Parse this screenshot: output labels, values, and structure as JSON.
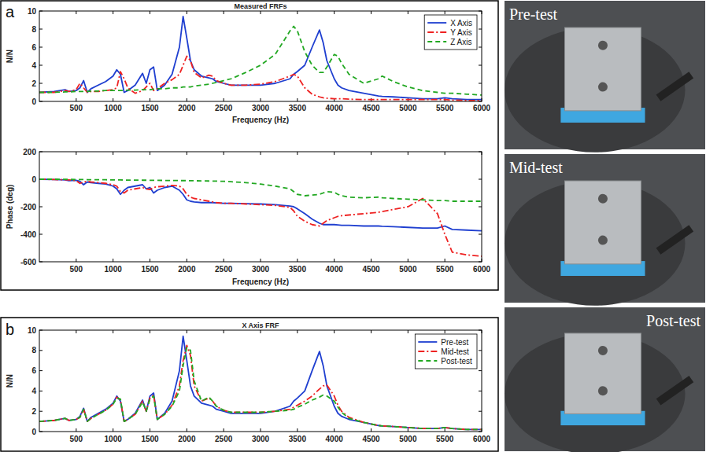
{
  "chart_data": [
    {
      "type": "line",
      "panel": "a",
      "title": "Measured FRFs",
      "x_label": "Frequency (Hz)",
      "y_label": "N/N",
      "x": [
        0,
        200,
        350,
        400,
        500,
        550,
        600,
        650,
        700,
        800,
        900,
        1000,
        1050,
        1100,
        1150,
        1200,
        1300,
        1400,
        1450,
        1500,
        1550,
        1600,
        1700,
        1800,
        1900,
        1950,
        2000,
        2050,
        2100,
        2200,
        2300,
        2350,
        2400,
        2500,
        2600,
        2800,
        3000,
        3200,
        3400,
        3450,
        3500,
        3600,
        3700,
        3800,
        3850,
        3900,
        4000,
        4050,
        4100,
        4200,
        4400,
        4600,
        4650,
        4800,
        5000,
        5200,
        5400,
        5500,
        5600,
        5800,
        6000
      ],
      "xlim": [
        0,
        6000
      ],
      "xticks": [
        500,
        1000,
        1500,
        2000,
        2500,
        3000,
        3500,
        4000,
        4500,
        5000,
        5500,
        6000
      ],
      "ylim": [
        0,
        10
      ],
      "yticks": [
        0,
        2,
        4,
        6,
        8,
        10
      ],
      "legend": "upper right",
      "series": [
        {
          "name": "X Axis",
          "color": "#1f3fd0",
          "line_style": "solid",
          "values": [
            1.0,
            1.1,
            1.3,
            1.1,
            1.2,
            1.5,
            2.3,
            1.0,
            1.4,
            1.8,
            2.2,
            2.8,
            3.5,
            3.0,
            1.0,
            1.2,
            1.8,
            3.1,
            2.0,
            3.5,
            3.8,
            1.2,
            1.8,
            3.0,
            6.0,
            9.4,
            7.0,
            4.5,
            3.5,
            2.8,
            2.6,
            2.5,
            2.2,
            2.0,
            1.8,
            1.8,
            1.8,
            2.0,
            2.5,
            3.0,
            3.3,
            4.0,
            6.0,
            7.9,
            6.5,
            4.5,
            2.5,
            1.8,
            1.5,
            1.2,
            0.9,
            0.6,
            0.55,
            0.5,
            0.4,
            0.3,
            0.3,
            0.4,
            0.3,
            0.2,
            0.2
          ]
        },
        {
          "name": "Y Axis",
          "color": "#ee2222",
          "line_style": "dash-dot",
          "values": [
            1.0,
            1.0,
            1.2,
            1.1,
            1.3,
            2.0,
            1.5,
            1.0,
            1.1,
            1.1,
            1.2,
            1.3,
            1.5,
            3.3,
            2.5,
            1.5,
            0.9,
            1.2,
            1.6,
            2.0,
            1.2,
            1.4,
            2.0,
            2.4,
            3.0,
            4.0,
            5.0,
            4.5,
            3.2,
            2.6,
            2.9,
            2.8,
            2.3,
            2.0,
            1.8,
            1.8,
            1.9,
            2.2,
            2.8,
            3.0,
            2.8,
            1.5,
            0.8,
            0.5,
            0.4,
            0.35,
            0.3,
            0.3,
            0.3,
            0.25,
            0.2,
            0.2,
            0.2,
            0.2,
            0.2,
            0.2,
            0.2,
            0.2,
            0.15,
            0.1,
            0.1
          ]
        },
        {
          "name": "Z Axis",
          "color": "#22a822",
          "line_style": "dashed",
          "values": [
            1.0,
            1.0,
            1.05,
            1.05,
            1.1,
            1.1,
            1.1,
            1.1,
            1.15,
            1.15,
            1.2,
            1.2,
            1.2,
            1.2,
            1.2,
            1.25,
            1.25,
            1.3,
            1.3,
            1.3,
            1.35,
            1.4,
            1.4,
            1.5,
            1.5,
            1.6,
            1.6,
            1.6,
            1.7,
            1.8,
            1.9,
            2.0,
            2.1,
            2.3,
            2.5,
            3.2,
            4.0,
            5.2,
            7.8,
            8.3,
            7.8,
            5.5,
            4.0,
            3.2,
            3.2,
            3.8,
            5.2,
            5.0,
            4.2,
            3.0,
            2.0,
            2.5,
            2.8,
            2.2,
            1.6,
            1.2,
            1.0,
            0.9,
            0.9,
            0.8,
            0.7
          ]
        }
      ]
    },
    {
      "type": "line",
      "x_label": "Frequency (Hz)",
      "y_label": "Phase (deg)",
      "x": [
        0,
        200,
        350,
        400,
        500,
        550,
        600,
        650,
        700,
        800,
        900,
        1000,
        1050,
        1100,
        1150,
        1200,
        1300,
        1400,
        1450,
        1500,
        1550,
        1600,
        1700,
        1800,
        1900,
        1950,
        2000,
        2050,
        2100,
        2200,
        2300,
        2350,
        2400,
        2500,
        2600,
        2800,
        3000,
        3200,
        3400,
        3450,
        3500,
        3600,
        3700,
        3800,
        3850,
        3900,
        4000,
        4050,
        4100,
        4200,
        4400,
        4600,
        4650,
        4800,
        5000,
        5200,
        5400,
        5500,
        5600,
        5800,
        6000
      ],
      "xlim": [
        0,
        6000
      ],
      "xticks": [
        500,
        1000,
        1500,
        2000,
        2500,
        3000,
        3500,
        4000,
        4500,
        5000,
        5500,
        6000
      ],
      "ylim": [
        -600,
        200
      ],
      "yticks": [
        -600,
        -400,
        -200,
        0,
        200
      ],
      "series": [
        {
          "color": "#1f3fd0",
          "line_style": "solid",
          "values": [
            0,
            -2,
            -5,
            -10,
            -8,
            -15,
            -40,
            -20,
            -25,
            -30,
            -35,
            -50,
            -70,
            -110,
            -80,
            -60,
            -50,
            -40,
            -70,
            -60,
            -100,
            -80,
            -60,
            -50,
            -80,
            -110,
            -150,
            -160,
            -165,
            -170,
            -170,
            -170,
            -172,
            -175,
            -175,
            -178,
            -180,
            -185,
            -195,
            -200,
            -215,
            -250,
            -290,
            -320,
            -330,
            -330,
            -330,
            -332,
            -335,
            -335,
            -340,
            -340,
            -342,
            -345,
            -350,
            -355,
            -355,
            -340,
            -365,
            -370,
            -375
          ]
        },
        {
          "color": "#ee2222",
          "line_style": "dash-dot",
          "values": [
            0,
            -2,
            -4,
            -5,
            -10,
            -30,
            -20,
            -15,
            -20,
            -25,
            -30,
            -40,
            -50,
            -90,
            -100,
            -80,
            -70,
            -60,
            -70,
            -75,
            -60,
            -55,
            -50,
            -45,
            -50,
            -70,
            -110,
            -130,
            -140,
            -150,
            -160,
            -165,
            -170,
            -175,
            -175,
            -180,
            -185,
            -190,
            -205,
            -230,
            -270,
            -305,
            -330,
            -340,
            -320,
            -300,
            -280,
            -270,
            -265,
            -260,
            -250,
            -240,
            -235,
            -220,
            -200,
            -140,
            -250,
            -400,
            -530,
            -550,
            -560
          ]
        },
        {
          "color": "#22a822",
          "line_style": "dashed",
          "values": [
            0,
            0,
            -1,
            -1,
            -2,
            -2,
            -2,
            -3,
            -3,
            -4,
            -4,
            -5,
            -5,
            -5,
            -6,
            -6,
            -6,
            -7,
            -7,
            -8,
            -8,
            -8,
            -9,
            -9,
            -10,
            -10,
            -10,
            -11,
            -11,
            -12,
            -13,
            -14,
            -14,
            -15,
            -18,
            -25,
            -35,
            -50,
            -70,
            -90,
            -110,
            -120,
            -115,
            -110,
            -100,
            -90,
            -95,
            -110,
            -120,
            -130,
            -135,
            -130,
            -135,
            -140,
            -145,
            -150,
            -155,
            -155,
            -160,
            -160,
            -160
          ]
        }
      ]
    },
    {
      "type": "line",
      "panel": "b",
      "title": "X Axis FRF",
      "y_label": "N/N",
      "x": [
        0,
        200,
        350,
        400,
        500,
        550,
        600,
        650,
        700,
        800,
        900,
        1000,
        1050,
        1100,
        1150,
        1200,
        1300,
        1400,
        1450,
        1500,
        1550,
        1600,
        1700,
        1800,
        1900,
        1950,
        2000,
        2050,
        2100,
        2200,
        2300,
        2350,
        2400,
        2500,
        2600,
        2800,
        3000,
        3200,
        3400,
        3450,
        3500,
        3600,
        3700,
        3800,
        3850,
        3900,
        4000,
        4050,
        4100,
        4200,
        4400,
        4600,
        4650,
        4800,
        5000,
        5200,
        5400,
        5500,
        5600,
        5800,
        6000
      ],
      "xlim": [
        0,
        6000
      ],
      "xticks": [
        500,
        1000,
        1500,
        2000,
        2500,
        3000,
        3500,
        4000,
        4500,
        5000,
        5500,
        6000
      ],
      "ylim": [
        0,
        10
      ],
      "yticks": [
        0,
        2,
        4,
        6,
        8,
        10
      ],
      "legend": "upper right",
      "series": [
        {
          "name": "Pre-test",
          "color": "#1f3fd0",
          "line_style": "solid",
          "values": [
            1.0,
            1.1,
            1.3,
            1.1,
            1.2,
            1.5,
            2.3,
            1.0,
            1.4,
            1.8,
            2.2,
            2.8,
            3.5,
            3.0,
            1.0,
            1.2,
            1.8,
            3.1,
            2.0,
            3.5,
            3.8,
            1.2,
            1.8,
            3.0,
            6.0,
            9.4,
            7.0,
            4.5,
            3.5,
            2.8,
            2.6,
            2.5,
            2.2,
            2.0,
            1.8,
            1.8,
            1.8,
            2.0,
            2.5,
            3.0,
            3.3,
            4.0,
            6.0,
            7.9,
            6.5,
            4.5,
            2.5,
            1.8,
            1.5,
            1.2,
            0.9,
            0.6,
            0.55,
            0.5,
            0.4,
            0.3,
            0.3,
            0.4,
            0.3,
            0.2,
            0.2
          ]
        },
        {
          "name": "Mid-test",
          "color": "#ee2222",
          "line_style": "dash-dot",
          "values": [
            1.0,
            1.1,
            1.3,
            1.1,
            1.2,
            1.4,
            2.2,
            1.0,
            1.3,
            1.7,
            2.1,
            2.7,
            3.4,
            3.1,
            1.0,
            1.2,
            1.7,
            3.0,
            2.0,
            3.3,
            3.6,
            1.2,
            1.7,
            2.6,
            4.5,
            7.0,
            8.5,
            7.5,
            4.5,
            3.0,
            3.3,
            3.0,
            2.5,
            2.1,
            1.9,
            1.9,
            1.9,
            2.0,
            2.2,
            2.4,
            2.6,
            3.0,
            3.5,
            4.2,
            4.5,
            4.6,
            3.5,
            2.6,
            2.0,
            1.4,
            0.9,
            0.6,
            0.55,
            0.5,
            0.4,
            0.3,
            0.3,
            0.4,
            0.3,
            0.2,
            0.2
          ]
        },
        {
          "name": "Post-test",
          "color": "#22a822",
          "line_style": "dashed",
          "values": [
            1.0,
            1.1,
            1.3,
            1.1,
            1.2,
            1.4,
            2.2,
            1.0,
            1.3,
            1.7,
            2.1,
            2.7,
            3.3,
            3.2,
            1.0,
            1.2,
            1.7,
            2.9,
            2.0,
            3.2,
            3.5,
            1.2,
            1.7,
            2.5,
            4.0,
            6.5,
            8.3,
            8.0,
            5.0,
            3.0,
            3.4,
            3.0,
            2.5,
            2.1,
            1.9,
            1.9,
            1.9,
            2.0,
            2.1,
            2.2,
            2.4,
            2.7,
            3.1,
            3.4,
            3.6,
            3.5,
            3.0,
            2.4,
            1.9,
            1.3,
            0.9,
            0.6,
            0.55,
            0.5,
            0.4,
            0.3,
            0.3,
            0.4,
            0.3,
            0.2,
            0.2
          ]
        }
      ]
    }
  ],
  "photos": [
    {
      "label": "Pre-test"
    },
    {
      "label": "Mid-test"
    },
    {
      "label": "Post-test"
    }
  ]
}
